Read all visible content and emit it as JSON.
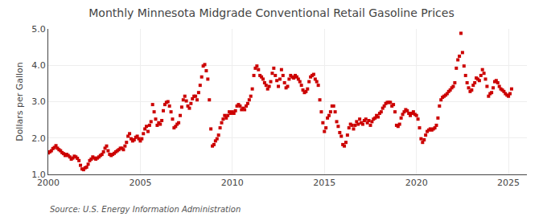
{
  "chart_data": {
    "type": "scatter",
    "title": "Monthly Minnesota Midgrade Conventional Retail Gasoline Prices",
    "ylabel": "Dollars per Gallon",
    "annotations": [
      "Source: U.S. Energy Information Administration"
    ],
    "color": "#cc0000",
    "marker": "square",
    "grid": true,
    "xlim": [
      2000,
      2026
    ],
    "xticks": [
      2000,
      2005,
      2010,
      2015,
      2020,
      2025
    ],
    "ylim": [
      1.0,
      5.0
    ],
    "yticks": [
      {
        "value": 1.0,
        "label": "1.0"
      },
      {
        "value": 2.0,
        "label": "2.0"
      },
      {
        "value": 3.0,
        "label": "3.0"
      },
      {
        "value": 4.0,
        "label": "4.0"
      },
      {
        "value": 5.0,
        "label": "5.0"
      }
    ],
    "x": [
      2000.0,
      2000.083,
      2000.167,
      2000.25,
      2000.333,
      2000.417,
      2000.5,
      2000.583,
      2000.667,
      2000.75,
      2000.833,
      2000.917,
      2001.0,
      2001.083,
      2001.167,
      2001.25,
      2001.333,
      2001.417,
      2001.5,
      2001.583,
      2001.667,
      2001.75,
      2001.833,
      2001.917,
      2002.0,
      2002.083,
      2002.167,
      2002.25,
      2002.333,
      2002.417,
      2002.5,
      2002.583,
      2002.667,
      2002.75,
      2002.833,
      2002.917,
      2003.0,
      2003.083,
      2003.167,
      2003.25,
      2003.333,
      2003.417,
      2003.5,
      2003.583,
      2003.667,
      2003.75,
      2003.833,
      2003.917,
      2004.0,
      2004.083,
      2004.167,
      2004.25,
      2004.333,
      2004.417,
      2004.5,
      2004.583,
      2004.667,
      2004.75,
      2004.833,
      2004.917,
      2005.0,
      2005.083,
      2005.167,
      2005.25,
      2005.333,
      2005.417,
      2005.5,
      2005.583,
      2005.667,
      2005.75,
      2005.833,
      2005.917,
      2006.0,
      2006.083,
      2006.167,
      2006.25,
      2006.333,
      2006.417,
      2006.5,
      2006.583,
      2006.667,
      2006.75,
      2006.833,
      2006.917,
      2007.0,
      2007.083,
      2007.167,
      2007.25,
      2007.333,
      2007.417,
      2007.5,
      2007.583,
      2007.667,
      2007.75,
      2007.833,
      2007.917,
      2008.0,
      2008.083,
      2008.167,
      2008.25,
      2008.333,
      2008.417,
      2008.5,
      2008.583,
      2008.667,
      2008.75,
      2008.833,
      2008.917,
      2009.0,
      2009.083,
      2009.167,
      2009.25,
      2009.333,
      2009.417,
      2009.5,
      2009.583,
      2009.667,
      2009.75,
      2009.833,
      2009.917,
      2010.0,
      2010.083,
      2010.167,
      2010.25,
      2010.333,
      2010.417,
      2010.5,
      2010.583,
      2010.667,
      2010.75,
      2010.833,
      2010.917,
      2011.0,
      2011.083,
      2011.167,
      2011.25,
      2011.333,
      2011.417,
      2011.5,
      2011.583,
      2011.667,
      2011.75,
      2011.833,
      2011.917,
      2012.0,
      2012.083,
      2012.167,
      2012.25,
      2012.333,
      2012.417,
      2012.5,
      2012.583,
      2012.667,
      2012.75,
      2012.833,
      2012.917,
      2013.0,
      2013.083,
      2013.167,
      2013.25,
      2013.333,
      2013.417,
      2013.5,
      2013.583,
      2013.667,
      2013.75,
      2013.833,
      2013.917,
      2014.0,
      2014.083,
      2014.167,
      2014.25,
      2014.333,
      2014.417,
      2014.5,
      2014.583,
      2014.667,
      2014.75,
      2014.833,
      2014.917,
      2015.0,
      2015.083,
      2015.167,
      2015.25,
      2015.333,
      2015.417,
      2015.5,
      2015.583,
      2015.667,
      2015.75,
      2015.833,
      2015.917,
      2016.0,
      2016.083,
      2016.167,
      2016.25,
      2016.333,
      2016.417,
      2016.5,
      2016.583,
      2016.667,
      2016.75,
      2016.833,
      2016.917,
      2017.0,
      2017.083,
      2017.167,
      2017.25,
      2017.333,
      2017.417,
      2017.5,
      2017.583,
      2017.667,
      2017.75,
      2017.833,
      2017.917,
      2018.0,
      2018.083,
      2018.167,
      2018.25,
      2018.333,
      2018.417,
      2018.5,
      2018.583,
      2018.667,
      2018.75,
      2018.833,
      2018.917,
      2019.0,
      2019.083,
      2019.167,
      2019.25,
      2019.333,
      2019.417,
      2019.5,
      2019.583,
      2019.667,
      2019.75,
      2019.833,
      2019.917,
      2020.0,
      2020.083,
      2020.167,
      2020.25,
      2020.333,
      2020.417,
      2020.5,
      2020.583,
      2020.667,
      2020.75,
      2020.833,
      2020.917,
      2021.0,
      2021.083,
      2021.167,
      2021.25,
      2021.333,
      2021.417,
      2021.5,
      2021.583,
      2021.667,
      2021.75,
      2021.833,
      2021.917,
      2022.0,
      2022.083,
      2022.167,
      2022.25,
      2022.333,
      2022.417,
      2022.5,
      2022.583,
      2022.667,
      2022.75,
      2022.833,
      2022.917,
      2023.0,
      2023.083,
      2023.167,
      2023.25,
      2023.333,
      2023.417,
      2023.5,
      2023.583,
      2023.667,
      2023.75,
      2023.833,
      2023.917,
      2024.0,
      2024.083,
      2024.167,
      2024.25,
      2024.333,
      2024.417,
      2024.5,
      2024.583,
      2024.667,
      2024.75,
      2024.833,
      2024.917,
      2025.0,
      2025.083,
      2025.167
    ],
    "values": [
      1.59,
      1.62,
      1.65,
      1.71,
      1.74,
      1.79,
      1.72,
      1.68,
      1.65,
      1.6,
      1.57,
      1.52,
      1.55,
      1.52,
      1.48,
      1.42,
      1.45,
      1.5,
      1.48,
      1.44,
      1.38,
      1.25,
      1.15,
      1.13,
      1.18,
      1.2,
      1.28,
      1.38,
      1.42,
      1.48,
      1.45,
      1.42,
      1.45,
      1.48,
      1.52,
      1.55,
      1.62,
      1.72,
      1.78,
      1.65,
      1.55,
      1.52,
      1.55,
      1.58,
      1.62,
      1.65,
      1.68,
      1.72,
      1.72,
      1.68,
      1.78,
      1.88,
      2.05,
      2.12,
      1.98,
      1.92,
      1.95,
      2.02,
      2.05,
      1.98,
      1.92,
      1.98,
      2.12,
      2.25,
      2.32,
      2.18,
      2.35,
      2.45,
      2.92,
      2.72,
      2.52,
      2.35,
      2.42,
      2.38,
      2.48,
      2.75,
      2.92,
      2.98,
      3.0,
      2.88,
      2.72,
      2.52,
      2.28,
      2.32,
      2.38,
      2.42,
      2.62,
      2.85,
      3.05,
      3.15,
      3.02,
      2.88,
      2.82,
      2.95,
      3.08,
      3.15,
      3.15,
      3.05,
      3.25,
      3.45,
      3.68,
      3.98,
      4.02,
      3.85,
      3.62,
      3.05,
      2.25,
      1.78,
      1.82,
      1.92,
      1.98,
      2.08,
      2.28,
      2.42,
      2.52,
      2.62,
      2.55,
      2.62,
      2.72,
      2.68,
      2.72,
      2.68,
      2.75,
      2.88,
      2.92,
      2.88,
      2.78,
      2.82,
      2.78,
      2.88,
      2.95,
      3.05,
      3.15,
      3.35,
      3.72,
      3.92,
      3.98,
      3.88,
      3.72,
      3.68,
      3.62,
      3.52,
      3.45,
      3.35,
      3.42,
      3.55,
      3.78,
      3.92,
      3.72,
      3.58,
      3.42,
      3.62,
      3.88,
      3.72,
      3.52,
      3.38,
      3.42,
      3.62,
      3.72,
      3.68,
      3.65,
      3.72,
      3.68,
      3.62,
      3.55,
      3.45,
      3.32,
      3.25,
      3.28,
      3.35,
      3.55,
      3.68,
      3.72,
      3.75,
      3.62,
      3.55,
      3.45,
      3.05,
      2.72,
      2.42,
      2.18,
      2.28,
      2.55,
      2.62,
      2.72,
      2.88,
      2.88,
      2.72,
      2.45,
      2.32,
      2.15,
      2.05,
      1.82,
      1.78,
      1.88,
      2.08,
      2.28,
      2.38,
      2.35,
      2.25,
      2.35,
      2.45,
      2.38,
      2.52,
      2.42,
      2.38,
      2.48,
      2.52,
      2.42,
      2.48,
      2.35,
      2.45,
      2.52,
      2.55,
      2.62,
      2.58,
      2.68,
      2.72,
      2.82,
      2.88,
      2.95,
      2.98,
      2.98,
      2.98,
      2.88,
      2.92,
      2.72,
      2.35,
      2.32,
      2.38,
      2.55,
      2.65,
      2.72,
      2.78,
      2.75,
      2.68,
      2.62,
      2.68,
      2.72,
      2.65,
      2.62,
      2.52,
      2.28,
      1.98,
      1.88,
      1.95,
      2.08,
      2.18,
      2.22,
      2.25,
      2.22,
      2.25,
      2.28,
      2.35,
      2.55,
      2.88,
      3.05,
      3.12,
      3.15,
      3.18,
      3.22,
      3.28,
      3.32,
      3.38,
      3.42,
      3.52,
      3.92,
      4.15,
      4.25,
      4.88,
      4.35,
      3.98,
      3.72,
      3.52,
      3.38,
      3.28,
      3.32,
      3.45,
      3.52,
      3.65,
      3.62,
      3.58,
      3.72,
      3.88,
      3.78,
      3.62,
      3.42,
      3.15,
      3.22,
      3.25,
      3.38,
      3.55,
      3.58,
      3.52,
      3.42,
      3.35,
      3.32,
      3.28,
      3.22,
      3.18,
      3.15,
      3.22,
      3.35
    ]
  }
}
